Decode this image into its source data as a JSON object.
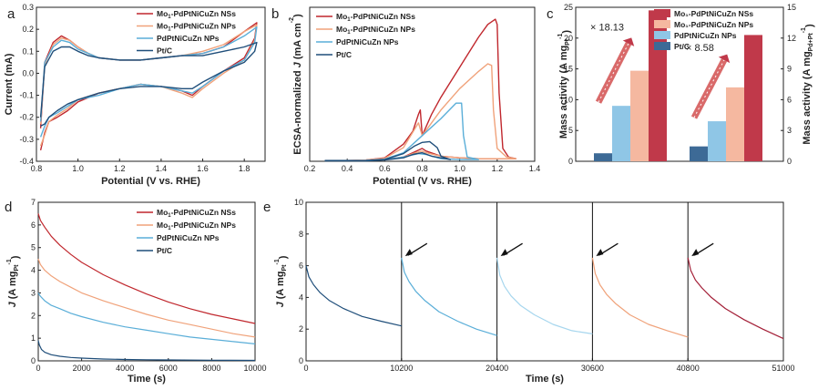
{
  "chart_data": [
    {
      "panel": "a",
      "type": "line",
      "xlabel": "Potential (V vs. RHE)",
      "ylabel": "Current (mA)",
      "xlim": [
        0.8,
        1.9
      ],
      "ylim": [
        -0.4,
        0.3
      ],
      "xticks": [
        "0.8",
        "1.0",
        "1.2",
        "1.4",
        "1.6",
        "1.8"
      ],
      "yticks": [
        "-0.4",
        "-0.3",
        "-0.2",
        "-0.1",
        "0.0",
        "0.1",
        "0.2",
        "0.3"
      ],
      "legend_position": "top-right",
      "series": [
        {
          "name": "Mo1-PdPtNiCuZn NSs",
          "color": "#c0272d",
          "x": [
            0.82,
            0.84,
            0.88,
            0.92,
            0.96,
            1.0,
            1.05,
            1.1,
            1.2,
            1.3,
            1.4,
            1.5,
            1.6,
            1.7,
            1.8,
            1.86,
            1.85,
            1.8,
            1.7,
            1.6,
            1.55,
            1.5,
            1.4,
            1.3,
            1.2,
            1.1,
            1.0,
            0.95,
            0.9,
            0.86,
            0.84,
            0.82
          ],
          "y": [
            -0.25,
            0.05,
            0.14,
            0.17,
            0.15,
            0.12,
            0.09,
            0.07,
            0.06,
            0.06,
            0.07,
            0.08,
            0.09,
            0.12,
            0.19,
            0.23,
            0.16,
            0.07,
            0.01,
            -0.06,
            -0.1,
            -0.08,
            -0.06,
            -0.05,
            -0.07,
            -0.09,
            -0.13,
            -0.17,
            -0.2,
            -0.22,
            -0.27,
            -0.35
          ]
        },
        {
          "name": "Mo1-PdPtNiCuZn NPs",
          "color": "#f0a27a",
          "x": [
            0.82,
            0.84,
            0.88,
            0.92,
            0.96,
            1.0,
            1.05,
            1.1,
            1.2,
            1.3,
            1.4,
            1.5,
            1.6,
            1.7,
            1.8,
            1.86,
            1.85,
            1.8,
            1.7,
            1.6,
            1.55,
            1.5,
            1.4,
            1.3,
            1.2,
            1.1,
            1.0,
            0.95,
            0.9,
            0.86,
            0.84,
            0.82
          ],
          "y": [
            -0.23,
            0.04,
            0.13,
            0.16,
            0.15,
            0.12,
            0.09,
            0.07,
            0.06,
            0.06,
            0.07,
            0.08,
            0.1,
            0.13,
            0.19,
            0.22,
            0.15,
            0.06,
            0.0,
            -0.07,
            -0.11,
            -0.09,
            -0.06,
            -0.05,
            -0.07,
            -0.09,
            -0.12,
            -0.16,
            -0.19,
            -0.22,
            -0.28,
            -0.33
          ]
        },
        {
          "name": "PdPtNiCuZn NPs",
          "color": "#5aaed8",
          "x": [
            0.82,
            0.84,
            0.88,
            0.92,
            0.96,
            1.0,
            1.05,
            1.1,
            1.2,
            1.3,
            1.4,
            1.5,
            1.6,
            1.7,
            1.8,
            1.86,
            1.85,
            1.8,
            1.7,
            1.6,
            1.55,
            1.5,
            1.4,
            1.3,
            1.2,
            1.1,
            1.0,
            0.95,
            0.9,
            0.86,
            0.84,
            0.82
          ],
          "y": [
            -0.22,
            0.05,
            0.12,
            0.15,
            0.14,
            0.11,
            0.09,
            0.07,
            0.06,
            0.06,
            0.07,
            0.08,
            0.09,
            0.12,
            0.17,
            0.21,
            0.14,
            0.06,
            0.01,
            -0.06,
            -0.09,
            -0.08,
            -0.06,
            -0.05,
            -0.07,
            -0.1,
            -0.12,
            -0.15,
            -0.18,
            -0.2,
            -0.24,
            -0.29
          ]
        },
        {
          "name": "Pt/C",
          "color": "#1f4e7a",
          "x": [
            0.82,
            0.84,
            0.88,
            0.92,
            0.96,
            1.0,
            1.05,
            1.1,
            1.2,
            1.3,
            1.4,
            1.5,
            1.6,
            1.7,
            1.8,
            1.86,
            1.85,
            1.8,
            1.7,
            1.6,
            1.55,
            1.5,
            1.4,
            1.3,
            1.2,
            1.1,
            1.0,
            0.95,
            0.9,
            0.86,
            0.84,
            0.82
          ],
          "y": [
            -0.2,
            0.03,
            0.1,
            0.12,
            0.12,
            0.1,
            0.08,
            0.07,
            0.06,
            0.06,
            0.07,
            0.08,
            0.08,
            0.1,
            0.12,
            0.14,
            0.1,
            0.05,
            0.01,
            -0.04,
            -0.07,
            -0.07,
            -0.06,
            -0.06,
            -0.07,
            -0.09,
            -0.12,
            -0.14,
            -0.17,
            -0.2,
            -0.23,
            -0.24
          ]
        }
      ]
    },
    {
      "panel": "b",
      "type": "line",
      "xlabel": "Potential (V vs. RHE)",
      "ylabel": "ECSA-normalized J (mA cm-2)",
      "ylabel_parts": [
        "ECSA-normalized ",
        "J",
        " (mA cm",
        "-2",
        ")"
      ],
      "xlim": [
        0.2,
        1.4
      ],
      "xticks": [
        "0.2",
        "0.4",
        "0.6",
        "0.8",
        "1.0",
        "1.2",
        "1.4"
      ],
      "yticks": [],
      "legend_position": "top-left",
      "series": [
        {
          "name": "Mo1-PdPtNiCuZn NSs",
          "color": "#c0272d",
          "x": [
            0.28,
            0.4,
            0.5,
            0.6,
            0.7,
            0.75,
            0.78,
            0.79,
            0.8,
            0.85,
            0.9,
            1.0,
            1.1,
            1.15,
            1.19,
            1.2,
            1.21,
            1.23,
            1.26,
            1.3,
            1.2,
            1.1,
            1.0,
            0.9,
            0.82,
            0.8,
            0.78,
            0.75,
            0.7,
            0.6,
            0.5,
            0.4,
            0.28
          ],
          "y": [
            0.1,
            0.1,
            0.15,
            0.4,
            2.0,
            3.5,
            5.5,
            6.0,
            3.0,
            5.5,
            7.5,
            11.0,
            14.5,
            16.0,
            16.6,
            16.0,
            8.0,
            1.5,
            0.5,
            0.3,
            0.3,
            0.3,
            0.4,
            0.6,
            1.2,
            1.5,
            1.3,
            1.0,
            0.5,
            0.2,
            0.1,
            0.1,
            0.1
          ]
        },
        {
          "name": "Mo1-PdPtNiCuZn NPs",
          "color": "#f0a27a",
          "x": [
            0.28,
            0.4,
            0.5,
            0.6,
            0.7,
            0.78,
            0.8,
            0.85,
            0.9,
            1.0,
            1.1,
            1.15,
            1.17,
            1.18,
            1.2,
            1.25,
            1.3,
            1.2,
            1.1,
            1.0,
            0.9,
            0.82,
            0.8,
            0.75,
            0.7,
            0.6,
            0.5,
            0.4,
            0.28
          ],
          "y": [
            0.1,
            0.1,
            0.15,
            0.35,
            1.6,
            4.5,
            3.0,
            4.5,
            6.0,
            8.5,
            10.5,
            11.4,
            11.2,
            6.0,
            1.5,
            0.5,
            0.3,
            0.3,
            0.3,
            0.4,
            0.6,
            1.0,
            1.2,
            0.9,
            0.5,
            0.2,
            0.1,
            0.1,
            0.1
          ]
        },
        {
          "name": "PdPtNiCuZn NPs",
          "color": "#5aaed8",
          "x": [
            0.28,
            0.4,
            0.5,
            0.6,
            0.7,
            0.8,
            0.9,
            0.98,
            1.01,
            1.02,
            1.04,
            1.1,
            1.0,
            0.9,
            0.82,
            0.78,
            0.7,
            0.6,
            0.5,
            0.4,
            0.28
          ],
          "y": [
            0.1,
            0.1,
            0.12,
            0.25,
            1.0,
            3.0,
            5.0,
            6.8,
            6.8,
            3.0,
            0.5,
            0.2,
            0.2,
            0.3,
            0.8,
            0.9,
            0.5,
            0.2,
            0.1,
            0.1,
            0.1
          ]
        },
        {
          "name": "Pt/C",
          "color": "#1f4e7a",
          "x": [
            0.28,
            0.4,
            0.5,
            0.6,
            0.7,
            0.76,
            0.8,
            0.84,
            0.88,
            0.9,
            0.95,
            0.85,
            0.8,
            0.75,
            0.7,
            0.6,
            0.5,
            0.4,
            0.28
          ],
          "y": [
            0.05,
            0.05,
            0.08,
            0.2,
            0.9,
            1.8,
            2.2,
            2.3,
            1.6,
            0.6,
            0.2,
            0.6,
            1.0,
            0.8,
            0.4,
            0.15,
            0.05,
            0.05,
            0.05
          ]
        }
      ],
      "ylim": [
        0,
        18
      ]
    },
    {
      "panel": "c",
      "type": "bar",
      "ylabel": "Mass activity (A mgPt-1)",
      "ylabel_left_parts": [
        "Mass activity (A mg",
        "Pt",
        "-1",
        ")"
      ],
      "ylabel_right_parts": [
        "Mass activity (A mg",
        "Pd+Pt",
        "-1",
        ")"
      ],
      "ylim": [
        0,
        25
      ],
      "ylim_right": [
        0,
        15
      ],
      "yticks": [
        "0",
        "5",
        "10",
        "15",
        "20",
        "25"
      ],
      "yticks_right": [
        "0",
        "3",
        "6",
        "9",
        "12",
        "15"
      ],
      "legend_position": "top-right",
      "groups": [
        {
          "axis": "left",
          "values": [
            1.3,
            9.0,
            14.7,
            24.5
          ],
          "annotation": "× 18.13"
        },
        {
          "axis": "right",
          "values": [
            1.45,
            3.9,
            7.2,
            12.3
          ],
          "annotation": "× 8.58"
        }
      ],
      "series": [
        {
          "name": "Mo₁-PdPtNiCuZn NSs",
          "color": "#c0394a"
        },
        {
          "name": "Mo₁-PdPtNiCuZn NPs",
          "color": "#f5b8a0"
        },
        {
          "name": "PdPtNiCuZn NPs",
          "color": "#8fc6e6"
        },
        {
          "name": "Pt/C",
          "color": "#3d6a96"
        }
      ]
    },
    {
      "panel": "d",
      "type": "line",
      "xlabel": "Time (s)",
      "ylabel": "J (A mgPt-1)",
      "ylabel_parts": [
        "J",
        " (A mg",
        "Pt",
        "-1",
        ")"
      ],
      "xlim": [
        0,
        10000
      ],
      "ylim": [
        0,
        7
      ],
      "xticks": [
        "0",
        "2000",
        "4000",
        "6000",
        "8000",
        "10000"
      ],
      "yticks": [
        "0",
        "1",
        "2",
        "3",
        "4",
        "5",
        "6",
        "7"
      ],
      "legend_position": "top-right",
      "series": [
        {
          "name": "Mo1-PdPtNiCuZn NSs",
          "color": "#c0272d",
          "x": [
            0,
            100,
            300,
            600,
            1000,
            1500,
            2000,
            3000,
            4000,
            5000,
            6000,
            7000,
            8000,
            9000,
            10000
          ],
          "y": [
            6.5,
            6.2,
            5.9,
            5.5,
            5.1,
            4.7,
            4.35,
            3.8,
            3.35,
            2.95,
            2.6,
            2.3,
            2.05,
            1.85,
            1.65
          ]
        },
        {
          "name": "Mo1-PdPtNiCuZn NPs",
          "color": "#f0a27a",
          "x": [
            0,
            100,
            300,
            600,
            1000,
            1500,
            2000,
            3000,
            4000,
            5000,
            6000,
            7000,
            8000,
            9000,
            10000
          ],
          "y": [
            4.5,
            4.25,
            4.0,
            3.75,
            3.5,
            3.25,
            3.0,
            2.65,
            2.35,
            2.05,
            1.8,
            1.6,
            1.4,
            1.2,
            1.05
          ]
        },
        {
          "name": "PdPtNiCuZn NPs",
          "color": "#5aaed8",
          "x": [
            0,
            100,
            300,
            600,
            1000,
            1500,
            2000,
            3000,
            4000,
            5000,
            6000,
            7000,
            8000,
            9000,
            10000
          ],
          "y": [
            3.0,
            2.85,
            2.65,
            2.45,
            2.3,
            2.1,
            1.95,
            1.7,
            1.5,
            1.35,
            1.2,
            1.05,
            0.95,
            0.85,
            0.75
          ]
        },
        {
          "name": "Pt/C",
          "color": "#1f4e7a",
          "x": [
            0,
            50,
            150,
            300,
            600,
            1000,
            1500,
            2000,
            3000,
            4000,
            5000,
            6000,
            8000,
            10000
          ],
          "y": [
            0.9,
            0.7,
            0.5,
            0.38,
            0.27,
            0.2,
            0.15,
            0.12,
            0.08,
            0.06,
            0.05,
            0.04,
            0.03,
            0.02
          ]
        }
      ]
    },
    {
      "panel": "e",
      "type": "line",
      "xlabel": "Time (s)",
      "ylabel": "J (A mgPt-1)",
      "ylabel_parts": [
        "J",
        " (A mg",
        "Pt",
        "-1",
        ")"
      ],
      "xlim": [
        0,
        51000
      ],
      "ylim": [
        0,
        10
      ],
      "xticks": [
        "0",
        "10200",
        "20400",
        "30600",
        "40800",
        "51000"
      ],
      "yticks": [
        "0",
        "2",
        "4",
        "6",
        "8",
        "10"
      ],
      "dividers": [
        10200,
        20400,
        30600,
        40800
      ],
      "arrows_at": [
        10200,
        20400,
        30600,
        40800
      ],
      "series": [
        {
          "color": "#1f4e7a",
          "x": [
            0,
            300,
            800,
            1500,
            2500,
            4000,
            6000,
            8000,
            10200
          ],
          "y": [
            6.0,
            5.3,
            4.8,
            4.3,
            3.8,
            3.3,
            2.8,
            2.5,
            2.2
          ]
        },
        {
          "color": "#5aaed8",
          "x": [
            10200,
            10500,
            11000,
            11700,
            12700,
            14200,
            16200,
            18200,
            20400
          ],
          "y": [
            6.5,
            5.6,
            5.0,
            4.4,
            3.8,
            3.1,
            2.5,
            2.0,
            1.6
          ]
        },
        {
          "color": "#a6d6ee",
          "x": [
            20400,
            20700,
            21200,
            21900,
            22900,
            24400,
            26400,
            28400,
            30600
          ],
          "y": [
            6.5,
            5.4,
            4.7,
            4.1,
            3.5,
            2.9,
            2.3,
            1.9,
            1.7
          ]
        },
        {
          "color": "#f0a27a",
          "x": [
            30600,
            30900,
            31400,
            32100,
            33100,
            34600,
            36600,
            38600,
            40800
          ],
          "y": [
            6.5,
            5.5,
            4.8,
            4.2,
            3.6,
            2.9,
            2.3,
            1.9,
            1.5
          ]
        },
        {
          "color": "#a31f37",
          "x": [
            40800,
            41100,
            41600,
            42300,
            43300,
            44800,
            46800,
            48800,
            51000
          ],
          "y": [
            6.5,
            5.7,
            5.1,
            4.6,
            4.0,
            3.3,
            2.6,
            2.0,
            1.4
          ]
        }
      ]
    }
  ]
}
